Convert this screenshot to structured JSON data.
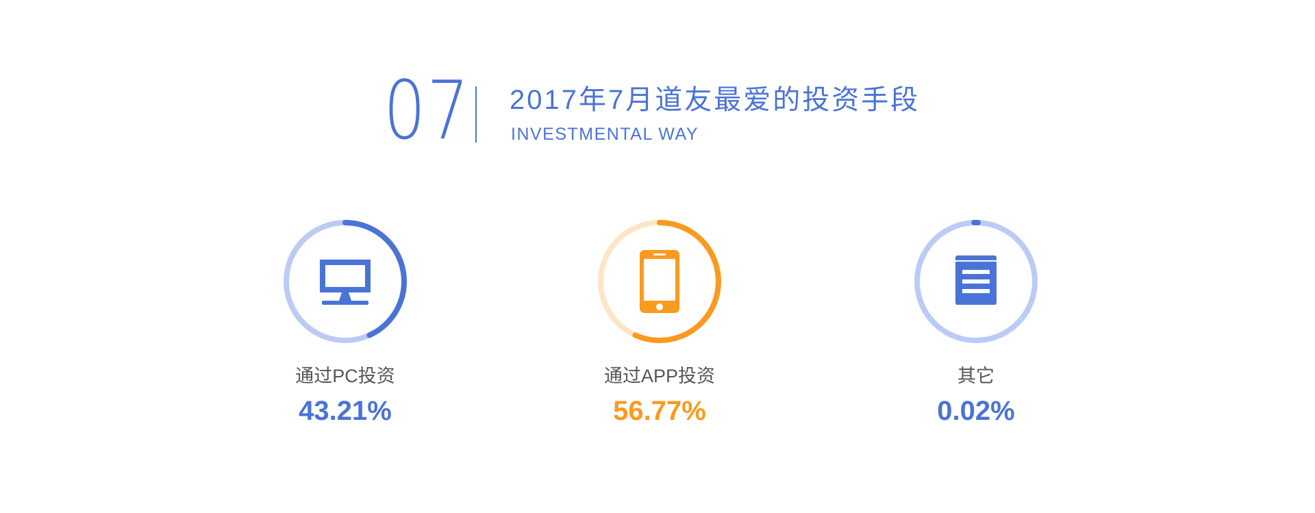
{
  "header": {
    "number": "07",
    "title": "2017年7月道友最爱的投资手段",
    "subtitle": "INVESTMENTAL WAY"
  },
  "colors": {
    "blue": "#4a73d6",
    "blue_light": "#bccbf6",
    "orange": "#fa9a1e",
    "orange_light": "#fde6c6"
  },
  "chart_data": {
    "type": "pie",
    "title": "",
    "categories": [
      "通过PC投资",
      "通过APP投资",
      "其它"
    ],
    "values": [
      43.21,
      56.77,
      0.02
    ],
    "value_labels": [
      "43.21%",
      "56.77%",
      "0.02%"
    ],
    "unit": "%",
    "icons": [
      "monitor-icon",
      "phone-icon",
      "document-icon"
    ],
    "series_colors": [
      "#4a73d6",
      "#fa9a1e",
      "#4a73d6"
    ],
    "track_colors": [
      "#bccbf6",
      "#fde6c6",
      "#bccbf6"
    ],
    "legend": "none",
    "grid": false
  }
}
